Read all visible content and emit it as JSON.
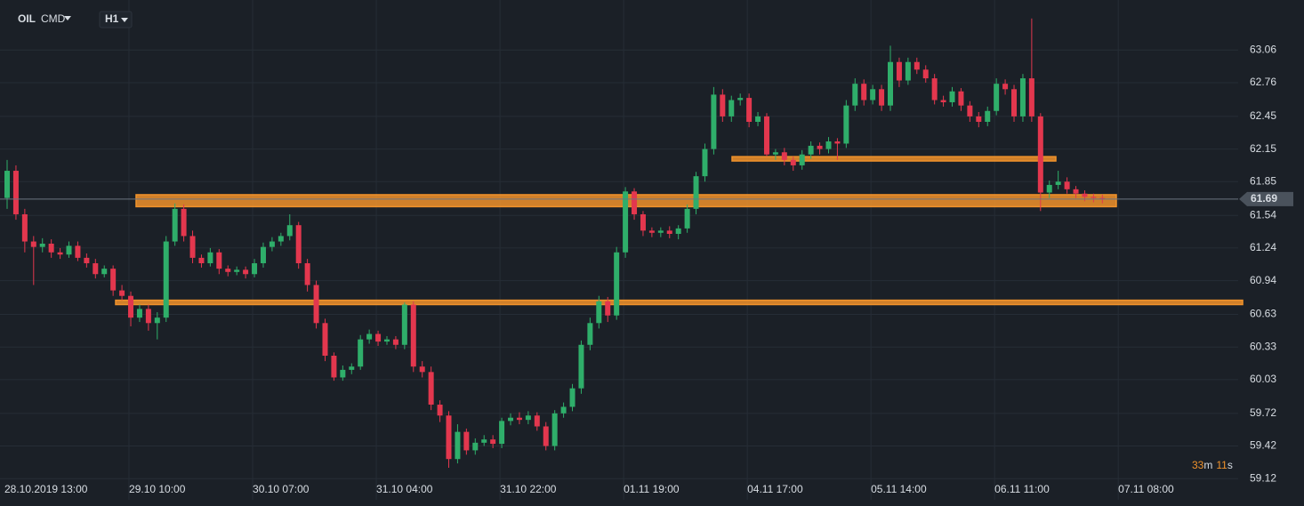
{
  "chart_data": {
    "type": "candlestick",
    "symbol": "OIL",
    "market": "CMD",
    "timeframe": "H1",
    "countdown": [
      "33",
      "m",
      "11",
      "s"
    ],
    "current_price": 61.69,
    "up_color": "#2fae6a",
    "down_color": "#e3374e",
    "level_color": "#f0922b",
    "grid": true,
    "ylim": [
      59.04,
      63.52
    ],
    "yticks": [
      59.12,
      59.42,
      59.72,
      60.03,
      60.33,
      60.63,
      60.94,
      61.24,
      61.54,
      61.85,
      62.15,
      62.45,
      62.76,
      63.06
    ],
    "levels": [
      {
        "low": 61.62,
        "high": 61.73
      },
      {
        "low": 60.72,
        "high": 60.76
      },
      {
        "low": 62.04,
        "high": 62.08
      }
    ],
    "categories": [
      "28.10.2019 13:00",
      null,
      null,
      null,
      null,
      null,
      null,
      null,
      null,
      null,
      null,
      null,
      null,
      null,
      "29.10 10:00",
      null,
      null,
      null,
      null,
      null,
      null,
      null,
      null,
      null,
      null,
      null,
      null,
      null,
      "30.10 07:00",
      null,
      null,
      null,
      null,
      null,
      null,
      null,
      null,
      null,
      null,
      null,
      null,
      null,
      "31.10 04:00",
      null,
      null,
      null,
      null,
      null,
      null,
      null,
      null,
      null,
      null,
      null,
      null,
      null,
      "31.10 22:00",
      null,
      null,
      null,
      null,
      null,
      null,
      null,
      null,
      null,
      null,
      null,
      null,
      null,
      "01.11 19:00",
      null,
      null,
      null,
      null,
      null,
      null,
      null,
      null,
      null,
      null,
      null,
      null,
      null,
      "04.11 17:00",
      null,
      null,
      null,
      null,
      null,
      null,
      null,
      null,
      null,
      null,
      null,
      null,
      null,
      "05.11 14:00",
      null,
      null,
      null,
      null,
      null,
      null,
      null,
      null,
      null,
      null,
      null,
      null,
      null,
      "06.11 11:00",
      null,
      null,
      null,
      null,
      null,
      null,
      null,
      null,
      null,
      null,
      null,
      null,
      null,
      "07.11 08:00"
    ],
    "open": [
      61.7,
      61.95,
      61.55,
      61.3,
      61.25,
      61.28,
      61.2,
      61.18,
      61.26,
      61.15,
      61.1,
      61.0,
      61.05,
      60.85,
      60.8,
      60.6,
      60.68,
      60.55,
      60.6,
      61.3,
      61.6,
      61.35,
      61.15,
      61.1,
      61.2,
      61.05,
      61.02,
      61.04,
      61.0,
      61.1,
      61.25,
      61.3,
      61.35,
      61.45,
      61.1,
      60.9,
      60.55,
      60.25,
      60.05,
      60.12,
      60.15,
      60.4,
      60.45,
      60.38,
      60.4,
      60.35,
      60.72,
      60.15,
      60.1,
      59.8,
      59.7,
      59.3,
      59.55,
      59.38,
      59.45,
      59.48,
      59.44,
      59.65,
      59.68,
      59.66,
      59.7,
      59.6,
      59.42,
      59.72,
      59.78,
      59.95,
      60.35,
      60.55,
      60.75,
      60.62,
      61.2,
      61.76,
      61.55,
      61.4,
      61.38,
      61.4,
      61.37,
      61.42,
      61.6,
      61.9,
      62.15,
      62.65,
      62.45,
      62.6,
      62.62,
      62.4,
      62.45,
      62.1,
      62.12,
      62.05,
      62.0,
      62.1,
      62.18,
      62.15,
      62.22,
      62.2,
      62.55,
      62.75,
      62.6,
      62.7,
      62.55,
      62.95,
      62.78,
      62.95,
      62.88,
      62.8,
      62.6,
      62.58,
      62.68,
      62.55,
      62.45,
      62.4,
      62.5,
      62.75,
      62.7,
      62.45,
      62.8,
      62.45,
      61.75,
      61.82,
      61.85,
      61.78,
      61.74,
      61.71,
      61.7,
      null,
      null
    ],
    "high": [
      62.05,
      62.0,
      61.6,
      61.35,
      61.33,
      61.32,
      61.24,
      61.3,
      61.3,
      61.19,
      61.14,
      61.08,
      61.08,
      60.9,
      60.84,
      60.72,
      60.72,
      60.65,
      61.35,
      61.65,
      61.64,
      61.4,
      61.18,
      61.24,
      61.23,
      61.08,
      61.07,
      61.07,
      61.14,
      61.29,
      61.34,
      61.38,
      61.55,
      61.48,
      61.14,
      60.94,
      60.59,
      60.28,
      60.16,
      60.18,
      60.44,
      60.49,
      60.48,
      60.43,
      60.43,
      60.74,
      60.75,
      60.2,
      60.15,
      59.84,
      59.74,
      59.62,
      59.58,
      59.49,
      59.52,
      59.52,
      59.68,
      59.72,
      59.73,
      59.74,
      59.73,
      59.64,
      59.75,
      59.82,
      59.99,
      60.39,
      60.6,
      60.8,
      60.79,
      61.25,
      61.8,
      61.79,
      61.58,
      61.43,
      61.43,
      61.44,
      61.45,
      61.64,
      61.94,
      62.2,
      62.72,
      62.7,
      62.64,
      62.66,
      62.66,
      62.49,
      62.48,
      62.15,
      62.16,
      62.08,
      62.14,
      62.22,
      62.21,
      62.26,
      62.25,
      62.6,
      62.8,
      62.79,
      62.74,
      62.74,
      63.1,
      62.99,
      62.99,
      62.99,
      62.92,
      62.84,
      62.64,
      62.72,
      62.71,
      62.59,
      62.49,
      62.54,
      62.8,
      62.79,
      62.74,
      62.84,
      63.35,
      62.48,
      61.86,
      61.95,
      61.89,
      61.81,
      61.77,
      61.74,
      61.73,
      null,
      null
    ],
    "low": [
      61.6,
      61.5,
      61.2,
      60.9,
      61.2,
      61.15,
      61.14,
      61.15,
      61.12,
      61.06,
      60.96,
      60.97,
      60.8,
      60.76,
      60.52,
      60.56,
      60.48,
      60.4,
      60.56,
      61.26,
      61.3,
      61.1,
      61.06,
      61.07,
      61.0,
      60.98,
      60.99,
      60.96,
      60.97,
      61.06,
      61.21,
      61.26,
      61.31,
      61.05,
      60.84,
      60.5,
      60.2,
      60.02,
      60.02,
      60.08,
      60.12,
      60.36,
      60.34,
      60.35,
      60.31,
      60.31,
      60.1,
      60.05,
      59.75,
      59.64,
      59.22,
      59.26,
      59.34,
      59.34,
      59.42,
      59.4,
      59.4,
      59.61,
      59.62,
      59.62,
      59.56,
      59.38,
      59.38,
      59.68,
      59.74,
      59.9,
      60.3,
      60.5,
      60.56,
      60.58,
      61.15,
      61.5,
      61.35,
      61.34,
      61.34,
      61.33,
      61.32,
      61.38,
      61.55,
      61.85,
      62.1,
      62.4,
      62.4,
      62.55,
      62.35,
      62.36,
      62.08,
      62.05,
      62.0,
      61.95,
      61.96,
      62.06,
      62.1,
      62.11,
      62.05,
      62.16,
      62.5,
      62.55,
      62.56,
      62.5,
      62.5,
      62.72,
      62.74,
      62.84,
      62.76,
      62.56,
      62.54,
      62.54,
      62.5,
      62.4,
      62.35,
      62.36,
      62.46,
      62.65,
      62.4,
      62.4,
      62.4,
      61.58,
      61.7,
      61.78,
      61.74,
      61.7,
      61.67,
      61.66,
      61.65,
      null,
      null
    ],
    "close": [
      61.95,
      61.55,
      61.3,
      61.25,
      61.28,
      61.2,
      61.18,
      61.26,
      61.15,
      61.1,
      61.0,
      61.05,
      60.85,
      60.8,
      60.6,
      60.68,
      60.55,
      60.6,
      61.3,
      61.6,
      61.35,
      61.15,
      61.1,
      61.2,
      61.05,
      61.02,
      61.04,
      61.0,
      61.1,
      61.25,
      61.3,
      61.35,
      61.45,
      61.1,
      60.9,
      60.55,
      60.25,
      60.05,
      60.12,
      60.15,
      60.4,
      60.45,
      60.38,
      60.4,
      60.35,
      60.72,
      60.15,
      60.1,
      59.8,
      59.7,
      59.3,
      59.55,
      59.38,
      59.45,
      59.48,
      59.44,
      59.65,
      59.68,
      59.66,
      59.7,
      59.6,
      59.42,
      59.72,
      59.78,
      59.95,
      60.35,
      60.55,
      60.75,
      60.62,
      61.2,
      61.76,
      61.55,
      61.4,
      61.38,
      61.4,
      61.37,
      61.42,
      61.6,
      61.9,
      62.15,
      62.65,
      62.45,
      62.6,
      62.62,
      62.4,
      62.45,
      62.1,
      62.12,
      62.05,
      62.0,
      62.1,
      62.18,
      62.15,
      62.22,
      62.2,
      62.55,
      62.75,
      62.6,
      62.7,
      62.55,
      62.95,
      62.78,
      62.95,
      62.88,
      62.8,
      62.6,
      62.58,
      62.68,
      62.55,
      62.45,
      62.4,
      62.5,
      62.75,
      62.7,
      62.45,
      62.8,
      62.45,
      61.75,
      61.82,
      61.85,
      61.78,
      61.74,
      61.71,
      61.7,
      61.69,
      null,
      null
    ]
  }
}
